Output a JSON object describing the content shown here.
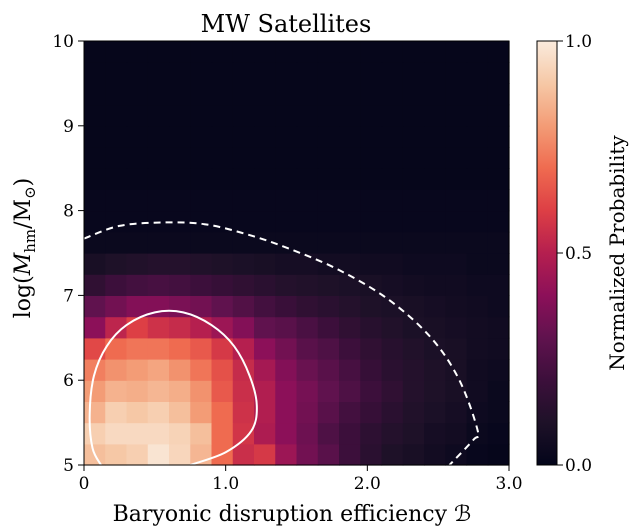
{
  "chart_data": {
    "type": "heatmap",
    "title": "MW Satellites",
    "xlabel": "Baryonic disruption efficiency ℬ",
    "ylabel": "log(M_hm/M_⊙)",
    "ylabel_parts": {
      "pre": "log(",
      "sym": "M",
      "sub1": "hm",
      "mid": "/M",
      "sub2": "⊙",
      "post": ")"
    },
    "xlim": [
      0,
      3
    ],
    "ylim": [
      5,
      10
    ],
    "xticks": [
      0,
      1,
      2,
      3
    ],
    "xtick_labels": [
      "0",
      "1.0",
      "2.0",
      "3.0"
    ],
    "yticks": [
      5,
      6,
      7,
      8,
      9,
      10
    ],
    "ytick_labels": [
      "5",
      "6",
      "7",
      "8",
      "9",
      "10"
    ],
    "colorbar": {
      "label": "Normalized Probability",
      "range": [
        0,
        1
      ],
      "ticks": [
        0,
        0.5,
        1
      ],
      "tick_labels": [
        "0.0",
        "0.5",
        "1.0"
      ]
    },
    "grid": {
      "nx": 20,
      "ny": 20,
      "rows_from_bottom": [
        [
          0.88,
          0.9,
          0.92,
          0.98,
          0.94,
          0.86,
          0.7,
          0.55,
          0.58,
          0.44,
          0.34,
          0.28,
          0.2,
          0.14,
          0.1,
          0.08,
          0.06,
          0.04,
          0.02,
          0.01
        ],
        [
          0.92,
          0.95,
          0.95,
          0.95,
          0.93,
          0.88,
          0.7,
          0.57,
          0.48,
          0.4,
          0.33,
          0.25,
          0.2,
          0.15,
          0.12,
          0.1,
          0.07,
          0.06,
          0.03,
          0.02
        ],
        [
          0.85,
          0.92,
          0.9,
          0.92,
          0.88,
          0.8,
          0.7,
          0.56,
          0.49,
          0.4,
          0.34,
          0.28,
          0.22,
          0.18,
          0.14,
          0.11,
          0.09,
          0.07,
          0.04,
          0.03
        ],
        [
          0.8,
          0.85,
          0.84,
          0.86,
          0.84,
          0.78,
          0.66,
          0.55,
          0.49,
          0.4,
          0.35,
          0.3,
          0.25,
          0.2,
          0.16,
          0.12,
          0.1,
          0.08,
          0.05,
          0.03
        ],
        [
          0.74,
          0.78,
          0.8,
          0.82,
          0.78,
          0.72,
          0.64,
          0.54,
          0.46,
          0.38,
          0.32,
          0.28,
          0.23,
          0.18,
          0.14,
          0.12,
          0.1,
          0.08,
          0.05,
          0.04
        ],
        [
          0.62,
          0.7,
          0.72,
          0.72,
          0.7,
          0.66,
          0.58,
          0.5,
          0.4,
          0.34,
          0.28,
          0.25,
          0.2,
          0.16,
          0.13,
          0.11,
          0.09,
          0.08,
          0.06,
          0.05
        ],
        [
          0.4,
          0.52,
          0.6,
          0.56,
          0.54,
          0.5,
          0.44,
          0.38,
          0.3,
          0.28,
          0.24,
          0.2,
          0.16,
          0.13,
          0.11,
          0.09,
          0.08,
          0.07,
          0.06,
          0.05
        ],
        [
          0.3,
          0.34,
          0.38,
          0.38,
          0.36,
          0.34,
          0.3,
          0.26,
          0.22,
          0.19,
          0.16,
          0.14,
          0.12,
          0.1,
          0.09,
          0.08,
          0.07,
          0.06,
          0.05,
          0.04
        ],
        [
          0.16,
          0.2,
          0.22,
          0.23,
          0.22,
          0.2,
          0.18,
          0.16,
          0.14,
          0.12,
          0.11,
          0.1,
          0.09,
          0.08,
          0.07,
          0.06,
          0.05,
          0.05,
          0.04,
          0.04
        ],
        [
          0.08,
          0.1,
          0.11,
          0.12,
          0.12,
          0.11,
          0.1,
          0.09,
          0.08,
          0.07,
          0.07,
          0.06,
          0.06,
          0.05,
          0.05,
          0.04,
          0.04,
          0.04,
          0.03,
          0.03
        ],
        [
          0.03,
          0.03,
          0.03,
          0.03,
          0.03,
          0.03,
          0.03,
          0.03,
          0.03,
          0.03,
          0.03,
          0.03,
          0.03,
          0.03,
          0.03,
          0.03,
          0.03,
          0.03,
          0.03,
          0.03
        ],
        [
          0.02,
          0.02,
          0.02,
          0.02,
          0.02,
          0.02,
          0.02,
          0.02,
          0.02,
          0.02,
          0.02,
          0.02,
          0.02,
          0.02,
          0.02,
          0.02,
          0.02,
          0.02,
          0.02,
          0.02
        ],
        [
          0.02,
          0.02,
          0.02,
          0.02,
          0.02,
          0.02,
          0.02,
          0.02,
          0.02,
          0.02,
          0.02,
          0.02,
          0.02,
          0.02,
          0.02,
          0.02,
          0.02,
          0.02,
          0.02,
          0.02
        ],
        [
          0.01,
          0.01,
          0.01,
          0.01,
          0.01,
          0.01,
          0.01,
          0.01,
          0.01,
          0.01,
          0.01,
          0.01,
          0.01,
          0.01,
          0.01,
          0.01,
          0.01,
          0.01,
          0.01,
          0.01
        ],
        [
          0.01,
          0.01,
          0.01,
          0.01,
          0.01,
          0.01,
          0.01,
          0.01,
          0.01,
          0.01,
          0.01,
          0.01,
          0.01,
          0.01,
          0.01,
          0.01,
          0.01,
          0.01,
          0.01,
          0.01
        ],
        [
          0.01,
          0.01,
          0.01,
          0.01,
          0.01,
          0.01,
          0.01,
          0.01,
          0.01,
          0.01,
          0.01,
          0.01,
          0.01,
          0.01,
          0.01,
          0.01,
          0.01,
          0.01,
          0.01,
          0.01
        ],
        [
          0.01,
          0.01,
          0.01,
          0.01,
          0.01,
          0.01,
          0.01,
          0.01,
          0.01,
          0.01,
          0.01,
          0.01,
          0.01,
          0.01,
          0.01,
          0.01,
          0.01,
          0.01,
          0.01,
          0.01
        ],
        [
          0.01,
          0.01,
          0.01,
          0.01,
          0.01,
          0.01,
          0.01,
          0.01,
          0.01,
          0.01,
          0.01,
          0.01,
          0.01,
          0.01,
          0.01,
          0.01,
          0.01,
          0.01,
          0.01,
          0.01
        ],
        [
          0.01,
          0.01,
          0.01,
          0.01,
          0.01,
          0.01,
          0.01,
          0.01,
          0.01,
          0.01,
          0.01,
          0.01,
          0.01,
          0.01,
          0.01,
          0.01,
          0.01,
          0.01,
          0.01,
          0.01
        ],
        [
          0.01,
          0.01,
          0.01,
          0.01,
          0.01,
          0.01,
          0.01,
          0.01,
          0.01,
          0.01,
          0.01,
          0.01,
          0.01,
          0.01,
          0.01,
          0.01,
          0.01,
          0.01,
          0.01,
          0.01
        ]
      ]
    },
    "contours": [
      {
        "style": "solid",
        "color": "#ffffff",
        "points": [
          [
            0.12,
            5.0
          ],
          [
            0.06,
            5.2
          ],
          [
            0.04,
            5.6
          ],
          [
            0.07,
            6.05
          ],
          [
            0.16,
            6.4
          ],
          [
            0.3,
            6.65
          ],
          [
            0.5,
            6.8
          ],
          [
            0.7,
            6.8
          ],
          [
            0.9,
            6.65
          ],
          [
            1.06,
            6.4
          ],
          [
            1.17,
            6.05
          ],
          [
            1.22,
            5.7
          ],
          [
            1.18,
            5.4
          ],
          [
            1.0,
            5.15
          ],
          [
            0.75,
            5.0
          ]
        ]
      },
      {
        "style": "dashed",
        "color": "#ffffff",
        "points": [
          [
            0.0,
            7.67
          ],
          [
            0.25,
            7.82
          ],
          [
            0.55,
            7.86
          ],
          [
            0.85,
            7.84
          ],
          [
            1.15,
            7.72
          ],
          [
            1.45,
            7.55
          ],
          [
            1.8,
            7.3
          ],
          [
            2.15,
            6.95
          ],
          [
            2.45,
            6.5
          ],
          [
            2.65,
            6.0
          ],
          [
            2.78,
            5.4
          ],
          [
            2.75,
            5.3
          ],
          [
            2.58,
            5.0
          ]
        ]
      }
    ],
    "colormap": [
      [
        0.0,
        "#03051a"
      ],
      [
        0.1,
        "#1e1128"
      ],
      [
        0.2,
        "#3c0f3b"
      ],
      [
        0.3,
        "#60124e"
      ],
      [
        0.4,
        "#8c1059"
      ],
      [
        0.5,
        "#b51f4f"
      ],
      [
        0.6,
        "#dd3f45"
      ],
      [
        0.7,
        "#ef6b50"
      ],
      [
        0.8,
        "#f39c76"
      ],
      [
        0.9,
        "#f6c8a6"
      ],
      [
        1.0,
        "#faebdd"
      ]
    ]
  }
}
